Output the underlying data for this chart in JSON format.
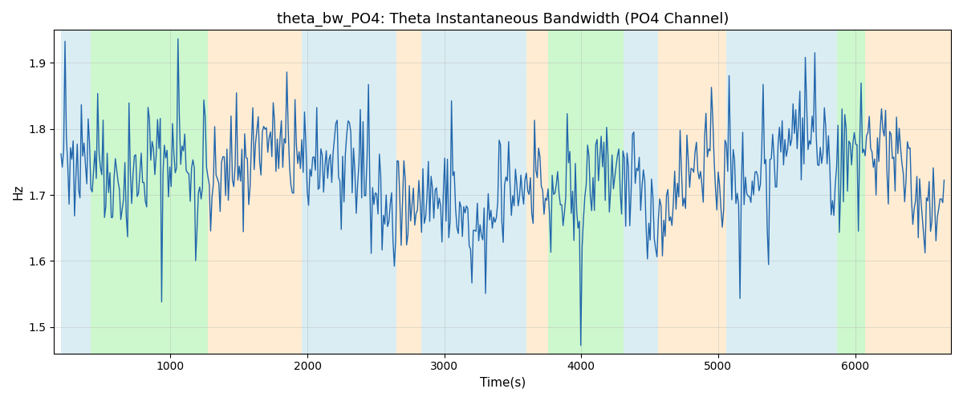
{
  "title": "theta_bw_PO4: Theta Instantaneous Bandwidth (PO4 Channel)",
  "xlabel": "Time(s)",
  "ylabel": "Hz",
  "xlim": [
    150,
    6700
  ],
  "ylim": [
    1.46,
    1.95
  ],
  "line_color": "#2166ac",
  "line_width": 1.0,
  "background_bands": [
    {
      "xmin": 200,
      "xmax": 420,
      "color": "#add8e6",
      "alpha": 0.45
    },
    {
      "xmin": 420,
      "xmax": 1270,
      "color": "#90ee90",
      "alpha": 0.45
    },
    {
      "xmin": 1270,
      "xmax": 1960,
      "color": "#ffd59e",
      "alpha": 0.45
    },
    {
      "xmin": 1960,
      "xmax": 2650,
      "color": "#add8e6",
      "alpha": 0.45
    },
    {
      "xmin": 2650,
      "xmax": 2830,
      "color": "#ffd59e",
      "alpha": 0.45
    },
    {
      "xmin": 2830,
      "xmax": 3600,
      "color": "#add8e6",
      "alpha": 0.45
    },
    {
      "xmin": 3600,
      "xmax": 3760,
      "color": "#ffd59e",
      "alpha": 0.45
    },
    {
      "xmin": 3760,
      "xmax": 4310,
      "color": "#90ee90",
      "alpha": 0.45
    },
    {
      "xmin": 4310,
      "xmax": 4560,
      "color": "#add8e6",
      "alpha": 0.45
    },
    {
      "xmin": 4560,
      "xmax": 5060,
      "color": "#ffd59e",
      "alpha": 0.45
    },
    {
      "xmin": 5060,
      "xmax": 5870,
      "color": "#add8e6",
      "alpha": 0.45
    },
    {
      "xmin": 5870,
      "xmax": 6070,
      "color": "#90ee90",
      "alpha": 0.45
    },
    {
      "xmin": 6070,
      "xmax": 6700,
      "color": "#ffd59e",
      "alpha": 0.45
    }
  ],
  "yticks": [
    1.5,
    1.6,
    1.7,
    1.8,
    1.9
  ],
  "grid_color": "#b0b0b0",
  "grid_alpha": 0.5,
  "seed": 42,
  "t_start": 200,
  "t_end": 6650,
  "figsize": [
    12,
    5
  ],
  "dpi": 100
}
